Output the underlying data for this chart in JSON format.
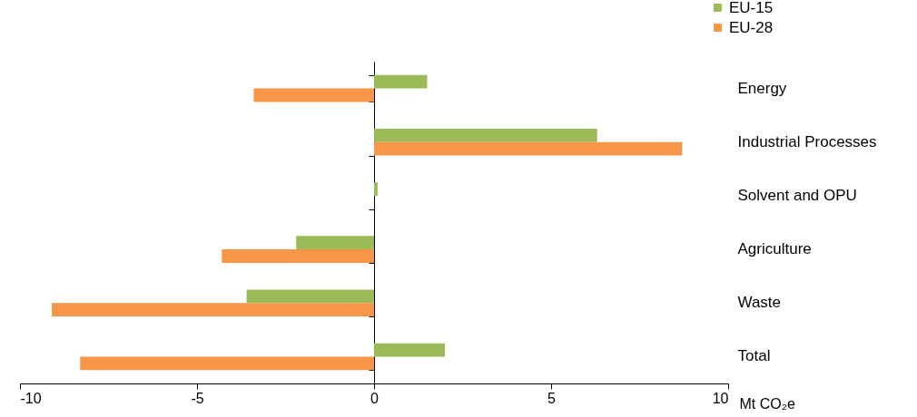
{
  "chart_data": {
    "type": "bar",
    "orientation": "horizontal",
    "xlabel": "Mt CO₂e",
    "categories": [
      "Energy",
      "Industrial Processes",
      "Solvent and OPU",
      "Agriculture",
      "Waste",
      "Total"
    ],
    "series": [
      {
        "name": "EU-15",
        "color": "#9bbb59",
        "values": [
          1.5,
          6.3,
          0.1,
          -2.2,
          -3.6,
          2.0
        ]
      },
      {
        "name": "EU-28",
        "color": "#f79646",
        "values": [
          -3.4,
          8.7,
          0.0,
          -4.3,
          -9.1,
          -8.3
        ]
      }
    ],
    "xlim": [
      -10,
      10
    ],
    "xticks": [
      -10,
      -5,
      0,
      5,
      10
    ],
    "legend": "top right"
  }
}
